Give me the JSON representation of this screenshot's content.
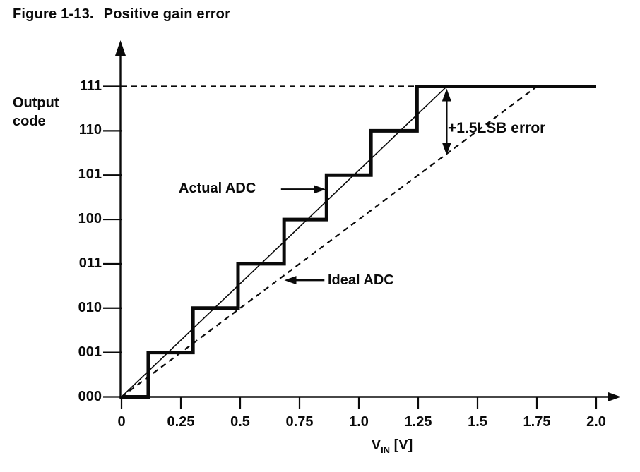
{
  "figure": {
    "title_label": "Figure 1-13.",
    "title_text": "Positive gain error"
  },
  "colors": {
    "ink": "#0a0a0a",
    "background": "#ffffff"
  },
  "chart_data": {
    "type": "line",
    "title": "Figure 1-13. Positive gain error",
    "ylabel": "Output code",
    "ylabel_lines": [
      "Output",
      "code"
    ],
    "xlabel": {
      "pre": "V",
      "sub": "IN",
      "post": " [V]"
    },
    "x_ticks": {
      "values": [
        0,
        0.25,
        0.5,
        0.75,
        1.0,
        1.25,
        1.5,
        1.75,
        2.0
      ],
      "labels": [
        "0",
        "0.25",
        "0.5",
        "0.75",
        "1.0",
        "1.25",
        "1.5",
        "1.75",
        "2.0"
      ]
    },
    "y_ticks": {
      "values": [
        0,
        1,
        2,
        3,
        4,
        5,
        6,
        7
      ],
      "labels": [
        "000",
        "001",
        "010",
        "011",
        "100",
        "101",
        "110",
        "111"
      ]
    },
    "xlim": [
      0,
      2.0
    ],
    "ylim_codes": [
      0,
      7
    ],
    "grid": false,
    "series": [
      {
        "name": "Actual ADC",
        "style": "staircase",
        "start": [
          0,
          0
        ],
        "transitions_v": [
          0.113,
          0.301,
          0.491,
          0.685,
          0.864,
          1.051,
          1.245
        ],
        "max_code": 7,
        "end_v": 2.0
      },
      {
        "name": "Actual ADC trend line",
        "style": "thin-solid",
        "points": [
          [
            0,
            0
          ],
          [
            1.37,
            7
          ]
        ]
      },
      {
        "name": "Ideal ADC",
        "style": "dashed",
        "points": [
          [
            0,
            0
          ],
          [
            1.75,
            7
          ]
        ]
      },
      {
        "name": "Full-scale reference",
        "style": "dashed",
        "points": [
          [
            0,
            7
          ],
          [
            1.245,
            7
          ]
        ]
      }
    ],
    "annotations": [
      {
        "id": "gain-error",
        "text": "+1.5LSB error",
        "arrow": {
          "type": "double-vertical",
          "at_v": 1.37,
          "from_code": 7,
          "to_code": 5.48
        }
      },
      {
        "id": "actual-adc",
        "text": "Actual ADC",
        "arrow": {
          "type": "points-right",
          "tip_v": 0.864,
          "tip_code": 4.68,
          "tail_v": 0.672
        }
      },
      {
        "id": "ideal-adc",
        "text": "Ideal ADC",
        "arrow": {
          "type": "points-left",
          "tip_v": 0.683,
          "tip_code": 2.63,
          "tail_v": 0.855
        }
      }
    ]
  }
}
